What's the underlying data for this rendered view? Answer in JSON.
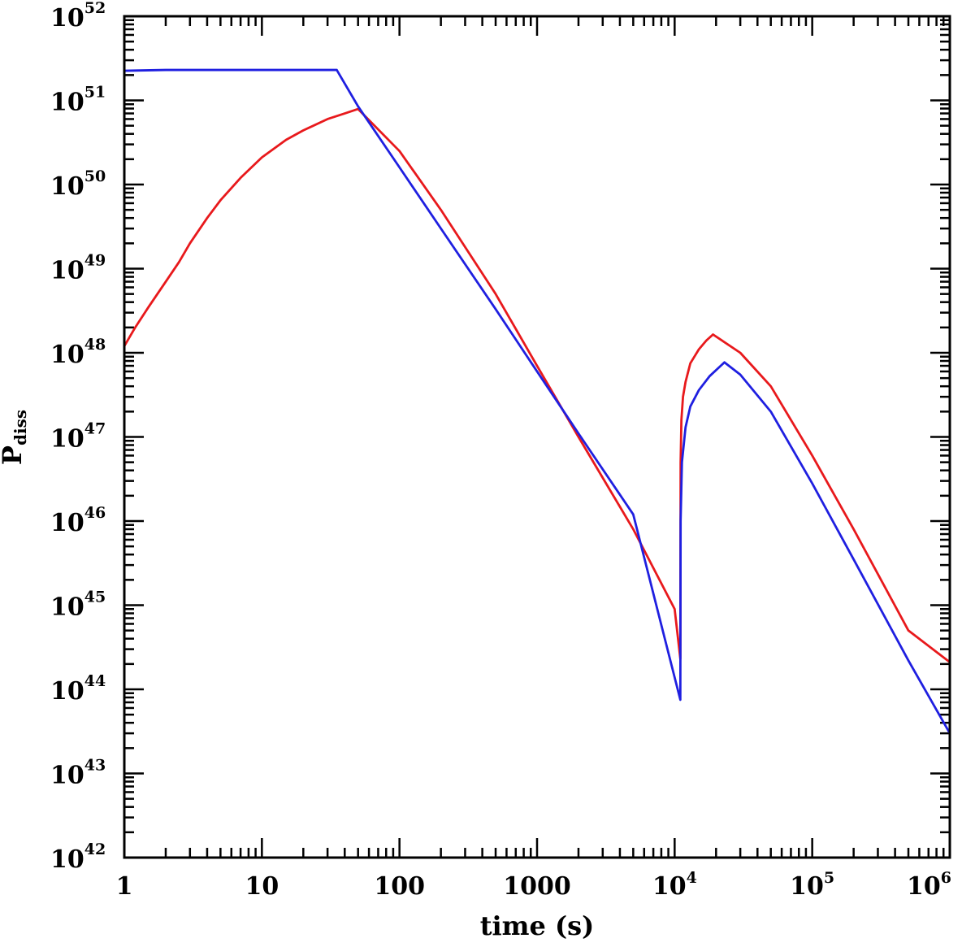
{
  "chart_data": {
    "type": "line",
    "title": "",
    "xlabel": "time (s)",
    "ylabel": {
      "main": "P",
      "sub": "diss"
    },
    "xscale": "log",
    "yscale": "log",
    "xlim": [
      1,
      1000000
    ],
    "ylim": [
      1e+42,
      1e+52
    ],
    "grid": false,
    "legend": "none",
    "x_tick_labels": [
      {
        "value": 1,
        "base": "1",
        "exp": ""
      },
      {
        "value": 10,
        "base": "10",
        "exp": ""
      },
      {
        "value": 100,
        "base": "100",
        "exp": ""
      },
      {
        "value": 1000,
        "base": "1000",
        "exp": ""
      },
      {
        "value": 10000,
        "base": "10",
        "exp": "4"
      },
      {
        "value": 100000,
        "base": "10",
        "exp": "5"
      },
      {
        "value": 1000000,
        "base": "10",
        "exp": "6"
      }
    ],
    "y_tick_labels": [
      {
        "value": 1e+42,
        "base": "10",
        "exp": "42"
      },
      {
        "value": 1e+43,
        "base": "10",
        "exp": "43"
      },
      {
        "value": 1e+44,
        "base": "10",
        "exp": "44"
      },
      {
        "value": 1e+45,
        "base": "10",
        "exp": "45"
      },
      {
        "value": 1e+46,
        "base": "10",
        "exp": "46"
      },
      {
        "value": 1e+47,
        "base": "10",
        "exp": "47"
      },
      {
        "value": 1e+48,
        "base": "10",
        "exp": "48"
      },
      {
        "value": 1e+49,
        "base": "10",
        "exp": "49"
      },
      {
        "value": 1e+50,
        "base": "10",
        "exp": "50"
      },
      {
        "value": 1e+51,
        "base": "10",
        "exp": "51"
      },
      {
        "value": 1e+52,
        "base": "10",
        "exp": "52"
      }
    ],
    "series": [
      {
        "color": "#e8191c",
        "points": [
          [
            1,
            1.2e+48
          ],
          [
            1.2,
            2e+48
          ],
          [
            1.5,
            3.5e+48
          ],
          [
            2,
            7e+48
          ],
          [
            2.5,
            1.2e+49
          ],
          [
            3,
            2e+49
          ],
          [
            4,
            4e+49
          ],
          [
            5,
            6.5e+49
          ],
          [
            7,
            1.2e+50
          ],
          [
            10,
            2.1e+50
          ],
          [
            15,
            3.4e+50
          ],
          [
            20,
            4.4e+50
          ],
          [
            30,
            6e+50
          ],
          [
            40,
            7e+50
          ],
          [
            50,
            7.9e+50
          ],
          [
            100,
            2.5e+50
          ],
          [
            200,
            5e+49
          ],
          [
            500,
            5e+48
          ],
          [
            1000,
            7e+47
          ],
          [
            2000,
            1e+47
          ],
          [
            5000,
            8e+45
          ],
          [
            10000,
            9e+44
          ],
          [
            11000,
            2.3e+44
          ],
          [
            11050,
            5e+46
          ],
          [
            11200,
            1.6e+47
          ],
          [
            11500,
            3e+47
          ],
          [
            12000,
            4.5e+47
          ],
          [
            13000,
            7.5e+47
          ],
          [
            15000,
            1.1e+48
          ],
          [
            17000,
            1.4e+48
          ],
          [
            19000,
            1.65e+48
          ],
          [
            30000,
            1e+48
          ],
          [
            50000,
            4e+47
          ],
          [
            100000,
            6e+46
          ],
          [
            200000,
            8e+45
          ],
          [
            500000,
            5e+44
          ],
          [
            1000000,
            2.1e+44
          ]
        ]
      },
      {
        "color": "#1f1fe0",
        "points": [
          [
            1,
            2.25e+51
          ],
          [
            2,
            2.3e+51
          ],
          [
            5,
            2.3e+51
          ],
          [
            10,
            2.3e+51
          ],
          [
            20,
            2.3e+51
          ],
          [
            35,
            2.3e+51
          ],
          [
            50,
            8.5e+50
          ],
          [
            100,
            1.6e+50
          ],
          [
            200,
            3e+49
          ],
          [
            500,
            3.3e+48
          ],
          [
            1000,
            6e+47
          ],
          [
            2000,
            1.1e+47
          ],
          [
            5000,
            1.2e+46
          ],
          [
            11000,
            7.5e+43
          ],
          [
            11050,
            1e+46
          ],
          [
            11300,
            5e+46
          ],
          [
            12000,
            1.3e+47
          ],
          [
            13000,
            2.3e+47
          ],
          [
            15000,
            3.6e+47
          ],
          [
            18000,
            5.3e+47
          ],
          [
            23000,
            7.7e+47
          ],
          [
            30000,
            5.5e+47
          ],
          [
            50000,
            2e+47
          ],
          [
            100000,
            2.8e+46
          ],
          [
            200000,
            3.5e+45
          ],
          [
            500000,
            2.2e+44
          ],
          [
            1000000,
            3e+43
          ]
        ]
      }
    ]
  }
}
